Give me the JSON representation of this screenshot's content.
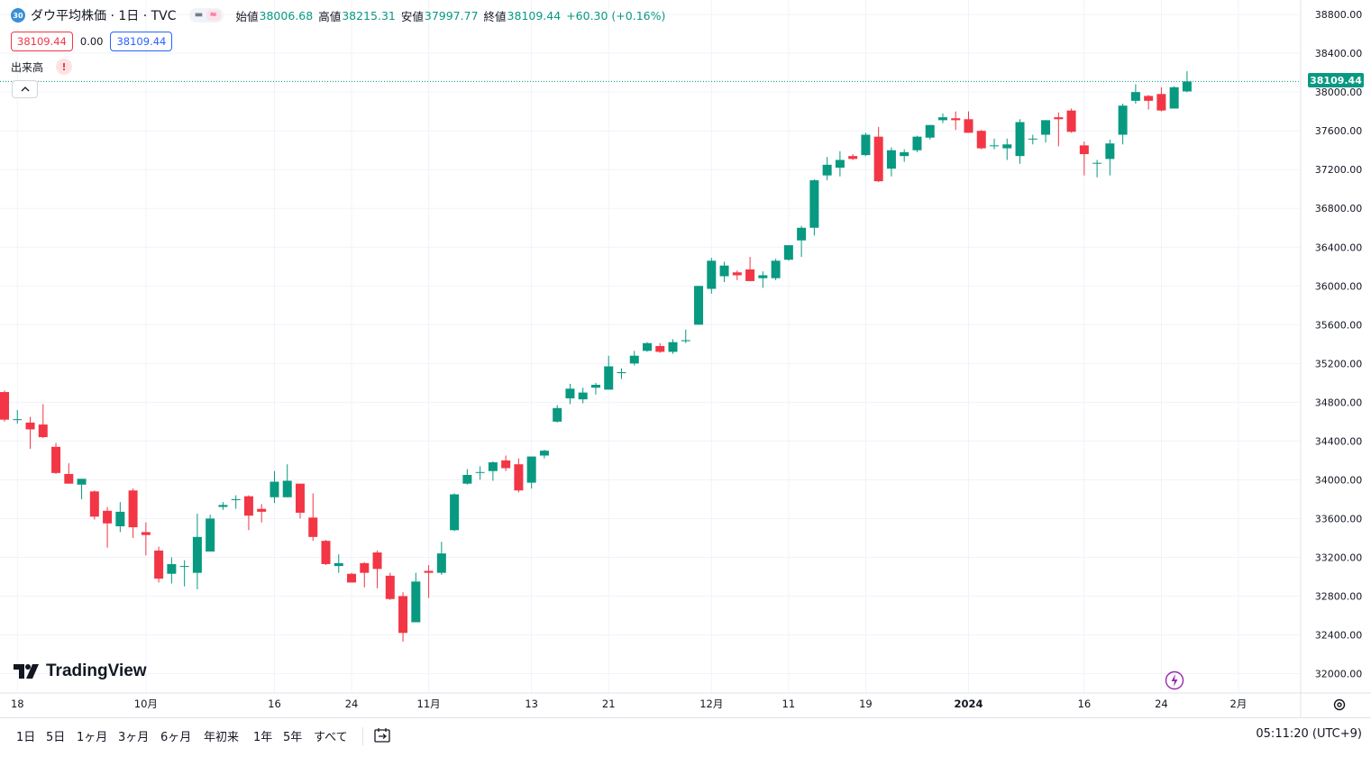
{
  "header": {
    "symbol_badge": "30",
    "title": "ダウ平均株価 · 1日 · TVC",
    "ohlc": [
      {
        "label": "始値",
        "value": "38006.68"
      },
      {
        "label": "高値",
        "value": "38215.31"
      },
      {
        "label": "安値",
        "value": "37997.77"
      },
      {
        "label": "終値",
        "value": "38109.44"
      }
    ],
    "change": "+60.30 (+0.16%)",
    "bid": "38109.44",
    "spread": "0.00",
    "ask": "38109.44",
    "volume_label": "出来高",
    "warning": "!",
    "collapse": "^"
  },
  "logo": "TradingView",
  "current_price_label": "38109.44",
  "bottom_bar": {
    "ranges": [
      "1日",
      "5日",
      "1ヶ月",
      "3ヶ月",
      "6ヶ月",
      "年初来",
      "1年",
      "5年",
      "すべて"
    ],
    "clock": "05:11:20 (UTC+9)"
  },
  "colors": {
    "up": "#089981",
    "down": "#f23645",
    "grid": "#f0f3fa",
    "text": "#131722"
  },
  "icons": [
    "symbol-badge-icon",
    "chart-style-toggle-icon",
    "warning-icon",
    "chevron-up-icon",
    "tradingview-logo-icon",
    "lightning-icon",
    "settings-gear-icon",
    "date-range-icon"
  ],
  "chart_data": {
    "type": "candlestick",
    "title": "ダウ平均株価 · 1日 · TVC",
    "y_ticks": [
      32000,
      32400,
      32800,
      33200,
      33600,
      34000,
      34400,
      34800,
      35200,
      35600,
      36000,
      36400,
      36800,
      37200,
      37600,
      38000,
      38400,
      38800
    ],
    "y_range": [
      31800,
      38950
    ],
    "current_price": 38109.44,
    "x_tick_labels": [
      {
        "label": "18",
        "date": "2023-09-18"
      },
      {
        "label": "10月",
        "date": "2023-10-02"
      },
      {
        "label": "16",
        "date": "2023-10-16"
      },
      {
        "label": "24",
        "date": "2023-10-24"
      },
      {
        "label": "11月",
        "date": "2023-11-01"
      },
      {
        "label": "13",
        "date": "2023-11-13"
      },
      {
        "label": "21",
        "date": "2023-11-21"
      },
      {
        "label": "12月",
        "date": "2023-12-01"
      },
      {
        "label": "11",
        "date": "2023-12-11"
      },
      {
        "label": "19",
        "date": "2023-12-19"
      },
      {
        "label": "2024",
        "date": "2024-01-02"
      },
      {
        "label": "16",
        "date": "2024-01-16"
      },
      {
        "label": "24",
        "date": "2024-01-24"
      },
      {
        "label": "2月",
        "date": "2024-02-01"
      }
    ],
    "candles": [
      [
        "2023-09-15",
        34905,
        34920,
        34600,
        34620
      ],
      [
        "2023-09-18",
        34620,
        34720,
        34580,
        34625
      ],
      [
        "2023-09-19",
        34590,
        34650,
        34320,
        34520
      ],
      [
        "2023-09-20",
        34570,
        34780,
        34430,
        34440
      ],
      [
        "2023-09-21",
        34340,
        34380,
        34060,
        34070
      ],
      [
        "2023-09-22",
        34060,
        34170,
        33960,
        33960
      ],
      [
        "2023-09-25",
        33950,
        34010,
        33800,
        34010
      ],
      [
        "2023-09-26",
        33880,
        33890,
        33590,
        33620
      ],
      [
        "2023-09-27",
        33680,
        33720,
        33300,
        33550
      ],
      [
        "2023-09-28",
        33520,
        33770,
        33460,
        33670
      ],
      [
        "2023-09-29",
        33890,
        33910,
        33400,
        33510
      ],
      [
        "2023-10-02",
        33460,
        33560,
        33220,
        33430
      ],
      [
        "2023-10-03",
        33270,
        33310,
        32940,
        32980
      ],
      [
        "2023-10-04",
        33030,
        33200,
        32930,
        33130
      ],
      [
        "2023-10-05",
        33110,
        33170,
        32900,
        33110
      ],
      [
        "2023-10-06",
        33040,
        33650,
        32870,
        33410
      ],
      [
        "2023-10-09",
        33260,
        33640,
        33260,
        33600
      ],
      [
        "2023-10-10",
        33720,
        33770,
        33690,
        33740
      ],
      [
        "2023-10-11",
        33790,
        33840,
        33700,
        33800
      ],
      [
        "2023-10-12",
        33830,
        33840,
        33480,
        33630
      ],
      [
        "2023-10-13",
        33700,
        33750,
        33560,
        33670
      ],
      [
        "2023-10-16",
        33820,
        34090,
        33760,
        33980
      ],
      [
        "2023-10-17",
        33820,
        34160,
        33820,
        33990
      ],
      [
        "2023-10-18",
        33960,
        33960,
        33600,
        33660
      ],
      [
        "2023-10-19",
        33610,
        33860,
        33370,
        33410
      ],
      [
        "2023-10-20",
        33370,
        33380,
        33120,
        33130
      ],
      [
        "2023-10-23",
        33110,
        33230,
        33040,
        33140
      ],
      [
        "2023-10-24",
        33030,
        33040,
        32940,
        32940
      ],
      [
        "2023-10-25",
        33140,
        33150,
        32890,
        33040
      ],
      [
        "2023-10-26",
        33250,
        33270,
        32880,
        33080
      ],
      [
        "2023-10-27",
        33010,
        33040,
        32760,
        32770
      ],
      [
        "2023-10-30",
        32800,
        32840,
        32330,
        32420
      ],
      [
        "2023-10-31",
        32530,
        33040,
        32530,
        32950
      ],
      [
        "2023-11-01",
        33060,
        33120,
        32780,
        33040
      ],
      [
        "2023-11-02",
        33040,
        33360,
        33020,
        33240
      ],
      [
        "2023-11-03",
        33480,
        33860,
        33470,
        33850
      ],
      [
        "2023-11-06",
        33960,
        34110,
        33950,
        34050
      ],
      [
        "2023-11-07",
        34080,
        34140,
        34000,
        34080
      ],
      [
        "2023-11-08",
        34090,
        34190,
        33990,
        34180
      ],
      [
        "2023-11-09",
        34200,
        34250,
        34090,
        34120
      ],
      [
        "2023-11-10",
        34160,
        34220,
        33870,
        33890
      ],
      [
        "2023-11-13",
        33970,
        34240,
        33910,
        34240
      ],
      [
        "2023-11-14",
        34250,
        34310,
        34220,
        34300
      ],
      [
        "2023-11-15",
        34600,
        34770,
        34590,
        34740
      ],
      [
        "2023-11-16",
        34840,
        34990,
        34780,
        34940
      ],
      [
        "2023-11-17",
        34830,
        34950,
        34790,
        34900
      ],
      [
        "2023-11-20",
        34950,
        35000,
        34880,
        34980
      ],
      [
        "2023-11-21",
        34930,
        35280,
        34930,
        35170
      ],
      [
        "2023-11-22",
        35100,
        35150,
        35040,
        35110
      ],
      [
        "2023-11-23",
        35200,
        35330,
        35180,
        35280
      ],
      [
        "2023-11-24",
        35330,
        35420,
        35320,
        35410
      ],
      [
        "2023-11-27",
        35380,
        35410,
        35310,
        35320
      ],
      [
        "2023-11-28",
        35320,
        35450,
        35300,
        35420
      ],
      [
        "2023-11-29",
        35430,
        35550,
        35410,
        35440
      ],
      [
        "2023-11-30",
        35600,
        36000,
        35600,
        36000
      ],
      [
        "2023-12-01",
        35970,
        36290,
        35920,
        36260
      ],
      [
        "2023-12-04",
        36100,
        36250,
        36040,
        36210
      ],
      [
        "2023-12-05",
        36140,
        36160,
        36060,
        36110
      ],
      [
        "2023-12-06",
        36170,
        36300,
        36050,
        36050
      ],
      [
        "2023-12-07",
        36080,
        36150,
        35980,
        36110
      ],
      [
        "2023-12-08",
        36080,
        36280,
        36060,
        36260
      ],
      [
        "2023-12-11",
        36270,
        36420,
        36260,
        36420
      ],
      [
        "2023-12-12",
        36470,
        36620,
        36300,
        36600
      ],
      [
        "2023-12-13",
        36600,
        37100,
        36520,
        37090
      ],
      [
        "2023-12-14",
        37140,
        37330,
        37090,
        37250
      ],
      [
        "2023-12-15",
        37220,
        37390,
        37130,
        37300
      ],
      [
        "2023-12-18",
        37340,
        37360,
        37300,
        37310
      ],
      [
        "2023-12-19",
        37350,
        37580,
        37340,
        37560
      ],
      [
        "2023-12-20",
        37540,
        37640,
        37070,
        37080
      ],
      [
        "2023-12-21",
        37210,
        37430,
        37130,
        37400
      ],
      [
        "2023-12-22",
        37340,
        37410,
        37280,
        37380
      ],
      [
        "2023-12-26",
        37400,
        37550,
        37380,
        37540
      ],
      [
        "2023-12-27",
        37530,
        37660,
        37510,
        37660
      ],
      [
        "2023-12-28",
        37710,
        37780,
        37680,
        37740
      ],
      [
        "2023-12-29",
        37730,
        37800,
        37610,
        37710
      ],
      [
        "2024-01-02",
        37720,
        37800,
        37580,
        37580
      ],
      [
        "2024-01-03",
        37600,
        37610,
        37410,
        37420
      ],
      [
        "2024-01-04",
        37450,
        37520,
        37410,
        37450
      ],
      [
        "2024-01-05",
        37420,
        37520,
        37300,
        37460
      ],
      [
        "2024-01-08",
        37340,
        37720,
        37260,
        37690
      ],
      [
        "2024-01-09",
        37520,
        37560,
        37460,
        37520
      ],
      [
        "2024-01-10",
        37560,
        37710,
        37480,
        37710
      ],
      [
        "2024-01-11",
        37740,
        37790,
        37440,
        37720
      ],
      [
        "2024-01-12",
        37810,
        37830,
        37580,
        37590
      ],
      [
        "2024-01-16",
        37450,
        37490,
        37140,
        37360
      ],
      [
        "2024-01-17",
        37270,
        37300,
        37120,
        37270
      ],
      [
        "2024-01-18",
        37310,
        37510,
        37140,
        37470
      ],
      [
        "2024-01-19",
        37560,
        37880,
        37460,
        37860
      ],
      [
        "2024-01-22",
        37910,
        38080,
        37880,
        38000
      ],
      [
        "2024-01-23",
        37960,
        37970,
        37820,
        37910
      ],
      [
        "2024-01-24",
        37980,
        38050,
        37800,
        37810
      ],
      [
        "2024-01-25",
        37830,
        38060,
        37830,
        38050
      ],
      [
        "2024-01-26",
        38006.68,
        38215.31,
        37997.77,
        38109.44
      ]
    ]
  }
}
